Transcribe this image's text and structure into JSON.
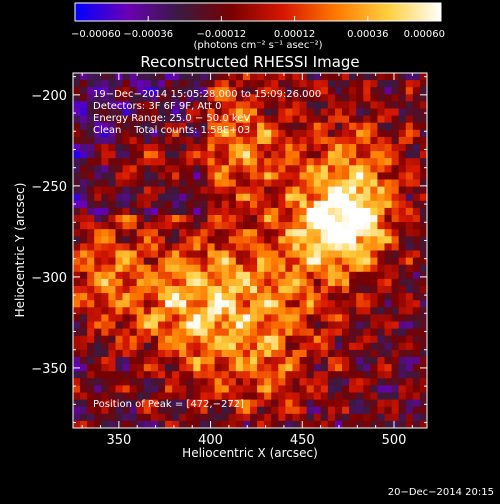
{
  "chart_data": {
    "type": "heatmap",
    "title": "Reconstructed RHESSI Image",
    "xlabel": "Heliocentric X (arcsec)",
    "ylabel": "Heliocentric Y (arcsec)",
    "xlim": [
      325,
      518
    ],
    "ylim": [
      -383,
      -188
    ],
    "x_ticks": [
      {
        "value": 350,
        "label": "350"
      },
      {
        "value": 400,
        "label": "400"
      },
      {
        "value": 450,
        "label": "450"
      },
      {
        "value": 500,
        "label": "500"
      }
    ],
    "y_ticks": [
      {
        "value": -200,
        "label": "−200"
      },
      {
        "value": -250,
        "label": "−250"
      },
      {
        "value": -300,
        "label": "−300"
      },
      {
        "value": -350,
        "label": "−350"
      }
    ],
    "colorbar": {
      "range": [
        -0.0006,
        0.0006
      ],
      "units": "(photons cm⁻² s⁻¹ asec⁻²)",
      "ticks": [
        {
          "value": -0.0006,
          "label": "−0.00060"
        },
        {
          "value": -0.00036,
          "label": "−0.00036"
        },
        {
          "value": -0.00012,
          "label": "−0.00012"
        },
        {
          "value": 0.00012,
          "label": "0.00012"
        },
        {
          "value": 0.00036,
          "label": "0.00036"
        },
        {
          "value": 0.0006,
          "label": "0.00060"
        }
      ],
      "colors": [
        "#0000ff",
        "#6a00b4",
        "#3a1a40",
        "#7a0000",
        "#d81800",
        "#ff7a00",
        "#ffd040",
        "#ffffff"
      ]
    },
    "annotations": {
      "time": "19−Dec−2014 15:05:28.000 to 15:09:26.000",
      "detectors": "Detectors: 3F 6F 9F, Att 0",
      "energy": "Energy Range: 25.0 − 50.0 keV",
      "algorithm": "Clean    Total counts: 1.58E+03",
      "peak": "Position of Peak = [472,−272]"
    },
    "peak_position": [
      472,
      -272
    ],
    "timestamp": "20−Dec−2014 20:15"
  }
}
